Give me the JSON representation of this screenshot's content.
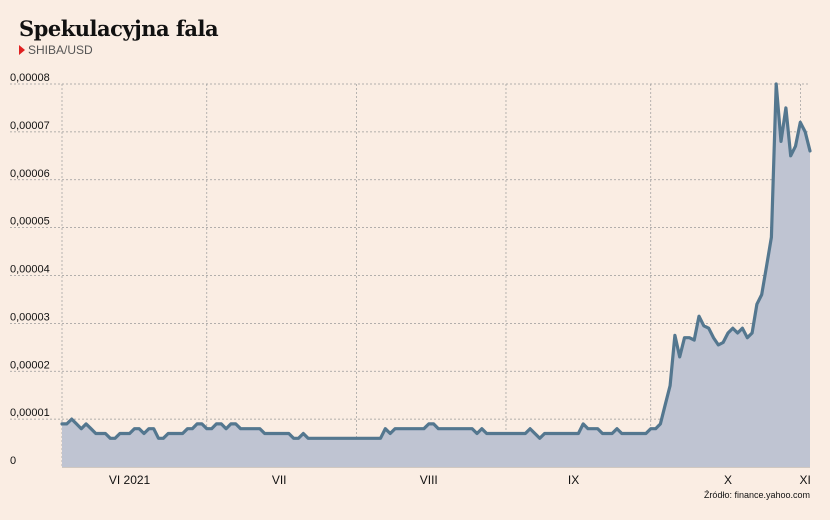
{
  "title": "Spekulacyjna fala",
  "subtitle": "SHIBA/USD",
  "source": "Źródło: finance.yahoo.com",
  "colors": {
    "line": "#54778f",
    "area": "#bfc4d2",
    "accent": "#e02020",
    "background": "#faede3",
    "grid": "#9a9a9a"
  },
  "chart_data": {
    "type": "area",
    "title": "Spekulacyjna fala",
    "subtitle": "SHIBA/USD",
    "xlabel": "",
    "ylabel": "",
    "ylim": [
      0,
      8e-05
    ],
    "yticks": [
      {
        "value": 0,
        "label": "0"
      },
      {
        "value": 1e-05,
        "label": "0,00001"
      },
      {
        "value": 2e-05,
        "label": "0,00002"
      },
      {
        "value": 3e-05,
        "label": "0,00003"
      },
      {
        "value": 4e-05,
        "label": "0,00004"
      },
      {
        "value": 5e-05,
        "label": "0,00005"
      },
      {
        "value": 6e-05,
        "label": "0,00006"
      },
      {
        "value": 7e-05,
        "label": "0,00007"
      },
      {
        "value": 8e-05,
        "label": "0,00008"
      }
    ],
    "xlim": [
      "2021-06-01",
      "2021-11-03"
    ],
    "month_ticks": [
      {
        "label": "VI 2021",
        "month_start": "2021-06-01",
        "label_date": "2021-06-15"
      },
      {
        "label": "VII",
        "month_start": "2021-07-01",
        "label_date": "2021-07-16"
      },
      {
        "label": "VIII",
        "month_start": "2021-08-01",
        "label_date": "2021-08-16"
      },
      {
        "label": "IX",
        "month_start": "2021-09-01",
        "label_date": "2021-09-15"
      },
      {
        "label": "X",
        "month_start": "2021-10-01",
        "label_date": "2021-10-17"
      },
      {
        "label": "XI",
        "month_start": "2021-11-01",
        "label_date": "2021-11-02"
      }
    ],
    "grid": true,
    "series": [
      {
        "points": [
          [
            "2021-06-01",
            9e-06
          ],
          [
            "2021-06-02",
            9e-06
          ],
          [
            "2021-06-03",
            1e-05
          ],
          [
            "2021-06-04",
            9e-06
          ],
          [
            "2021-06-05",
            8e-06
          ],
          [
            "2021-06-06",
            9e-06
          ],
          [
            "2021-06-07",
            8e-06
          ],
          [
            "2021-06-08",
            7e-06
          ],
          [
            "2021-06-09",
            7e-06
          ],
          [
            "2021-06-10",
            7e-06
          ],
          [
            "2021-06-11",
            6e-06
          ],
          [
            "2021-06-12",
            6e-06
          ],
          [
            "2021-06-13",
            7e-06
          ],
          [
            "2021-06-14",
            7e-06
          ],
          [
            "2021-06-15",
            7e-06
          ],
          [
            "2021-06-16",
            8e-06
          ],
          [
            "2021-06-17",
            8e-06
          ],
          [
            "2021-06-18",
            7e-06
          ],
          [
            "2021-06-19",
            8e-06
          ],
          [
            "2021-06-20",
            8e-06
          ],
          [
            "2021-06-21",
            6e-06
          ],
          [
            "2021-06-22",
            6e-06
          ],
          [
            "2021-06-23",
            7e-06
          ],
          [
            "2021-06-24",
            7e-06
          ],
          [
            "2021-06-25",
            7e-06
          ],
          [
            "2021-06-26",
            7e-06
          ],
          [
            "2021-06-27",
            8e-06
          ],
          [
            "2021-06-28",
            8e-06
          ],
          [
            "2021-06-29",
            9e-06
          ],
          [
            "2021-06-30",
            9e-06
          ],
          [
            "2021-07-01",
            8e-06
          ],
          [
            "2021-07-02",
            8e-06
          ],
          [
            "2021-07-03",
            9e-06
          ],
          [
            "2021-07-04",
            9e-06
          ],
          [
            "2021-07-05",
            8e-06
          ],
          [
            "2021-07-06",
            9e-06
          ],
          [
            "2021-07-07",
            9e-06
          ],
          [
            "2021-07-08",
            8e-06
          ],
          [
            "2021-07-09",
            8e-06
          ],
          [
            "2021-07-10",
            8e-06
          ],
          [
            "2021-07-11",
            8e-06
          ],
          [
            "2021-07-12",
            8e-06
          ],
          [
            "2021-07-13",
            7e-06
          ],
          [
            "2021-07-14",
            7e-06
          ],
          [
            "2021-07-15",
            7e-06
          ],
          [
            "2021-07-16",
            7e-06
          ],
          [
            "2021-07-17",
            7e-06
          ],
          [
            "2021-07-18",
            7e-06
          ],
          [
            "2021-07-19",
            6e-06
          ],
          [
            "2021-07-20",
            6e-06
          ],
          [
            "2021-07-21",
            7e-06
          ],
          [
            "2021-07-22",
            6e-06
          ],
          [
            "2021-07-23",
            6e-06
          ],
          [
            "2021-07-24",
            6e-06
          ],
          [
            "2021-07-25",
            6e-06
          ],
          [
            "2021-07-26",
            6e-06
          ],
          [
            "2021-07-27",
            6e-06
          ],
          [
            "2021-07-28",
            6e-06
          ],
          [
            "2021-07-29",
            6e-06
          ],
          [
            "2021-07-30",
            6e-06
          ],
          [
            "2021-07-31",
            6e-06
          ],
          [
            "2021-08-01",
            6e-06
          ],
          [
            "2021-08-02",
            6e-06
          ],
          [
            "2021-08-03",
            6e-06
          ],
          [
            "2021-08-04",
            6e-06
          ],
          [
            "2021-08-05",
            6e-06
          ],
          [
            "2021-08-06",
            6e-06
          ],
          [
            "2021-08-07",
            8e-06
          ],
          [
            "2021-08-08",
            7e-06
          ],
          [
            "2021-08-09",
            8e-06
          ],
          [
            "2021-08-10",
            8e-06
          ],
          [
            "2021-08-11",
            8e-06
          ],
          [
            "2021-08-12",
            8e-06
          ],
          [
            "2021-08-13",
            8e-06
          ],
          [
            "2021-08-14",
            8e-06
          ],
          [
            "2021-08-15",
            8e-06
          ],
          [
            "2021-08-16",
            9e-06
          ],
          [
            "2021-08-17",
            9e-06
          ],
          [
            "2021-08-18",
            8e-06
          ],
          [
            "2021-08-19",
            8e-06
          ],
          [
            "2021-08-20",
            8e-06
          ],
          [
            "2021-08-21",
            8e-06
          ],
          [
            "2021-08-22",
            8e-06
          ],
          [
            "2021-08-23",
            8e-06
          ],
          [
            "2021-08-24",
            8e-06
          ],
          [
            "2021-08-25",
            8e-06
          ],
          [
            "2021-08-26",
            7e-06
          ],
          [
            "2021-08-27",
            8e-06
          ],
          [
            "2021-08-28",
            7e-06
          ],
          [
            "2021-08-29",
            7e-06
          ],
          [
            "2021-08-30",
            7e-06
          ],
          [
            "2021-08-31",
            7e-06
          ],
          [
            "2021-09-01",
            7e-06
          ],
          [
            "2021-09-02",
            7e-06
          ],
          [
            "2021-09-03",
            7e-06
          ],
          [
            "2021-09-04",
            7e-06
          ],
          [
            "2021-09-05",
            7e-06
          ],
          [
            "2021-09-06",
            8e-06
          ],
          [
            "2021-09-07",
            7e-06
          ],
          [
            "2021-09-08",
            6e-06
          ],
          [
            "2021-09-09",
            7e-06
          ],
          [
            "2021-09-10",
            7e-06
          ],
          [
            "2021-09-11",
            7e-06
          ],
          [
            "2021-09-12",
            7e-06
          ],
          [
            "2021-09-13",
            7e-06
          ],
          [
            "2021-09-14",
            7e-06
          ],
          [
            "2021-09-15",
            7e-06
          ],
          [
            "2021-09-16",
            7e-06
          ],
          [
            "2021-09-17",
            9e-06
          ],
          [
            "2021-09-18",
            8e-06
          ],
          [
            "2021-09-19",
            8e-06
          ],
          [
            "2021-09-20",
            8e-06
          ],
          [
            "2021-09-21",
            7e-06
          ],
          [
            "2021-09-22",
            7e-06
          ],
          [
            "2021-09-23",
            7e-06
          ],
          [
            "2021-09-24",
            8e-06
          ],
          [
            "2021-09-25",
            7e-06
          ],
          [
            "2021-09-26",
            7e-06
          ],
          [
            "2021-09-27",
            7e-06
          ],
          [
            "2021-09-28",
            7e-06
          ],
          [
            "2021-09-29",
            7e-06
          ],
          [
            "2021-09-30",
            7e-06
          ],
          [
            "2021-10-01",
            8e-06
          ],
          [
            "2021-10-02",
            8e-06
          ],
          [
            "2021-10-03",
            9e-06
          ],
          [
            "2021-10-04",
            1.3e-05
          ],
          [
            "2021-10-05",
            1.7e-05
          ],
          [
            "2021-10-06",
            2.75e-05
          ],
          [
            "2021-10-07",
            2.3e-05
          ],
          [
            "2021-10-08",
            2.7e-05
          ],
          [
            "2021-10-09",
            2.7e-05
          ],
          [
            "2021-10-10",
            2.65e-05
          ],
          [
            "2021-10-11",
            3.15e-05
          ],
          [
            "2021-10-12",
            2.95e-05
          ],
          [
            "2021-10-13",
            2.9e-05
          ],
          [
            "2021-10-14",
            2.7e-05
          ],
          [
            "2021-10-15",
            2.55e-05
          ],
          [
            "2021-10-16",
            2.6e-05
          ],
          [
            "2021-10-17",
            2.8e-05
          ],
          [
            "2021-10-18",
            2.9e-05
          ],
          [
            "2021-10-19",
            2.8e-05
          ],
          [
            "2021-10-20",
            2.9e-05
          ],
          [
            "2021-10-21",
            2.7e-05
          ],
          [
            "2021-10-22",
            2.8e-05
          ],
          [
            "2021-10-23",
            3.4e-05
          ],
          [
            "2021-10-24",
            3.6e-05
          ],
          [
            "2021-10-25",
            4.2e-05
          ],
          [
            "2021-10-26",
            4.8e-05
          ],
          [
            "2021-10-27",
            8e-05
          ],
          [
            "2021-10-28",
            6.8e-05
          ],
          [
            "2021-10-29",
            7.5e-05
          ],
          [
            "2021-10-30",
            6.5e-05
          ],
          [
            "2021-10-31",
            6.7e-05
          ],
          [
            "2021-11-01",
            7.2e-05
          ],
          [
            "2021-11-02",
            7e-05
          ],
          [
            "2021-11-03",
            6.6e-05
          ]
        ]
      }
    ]
  }
}
